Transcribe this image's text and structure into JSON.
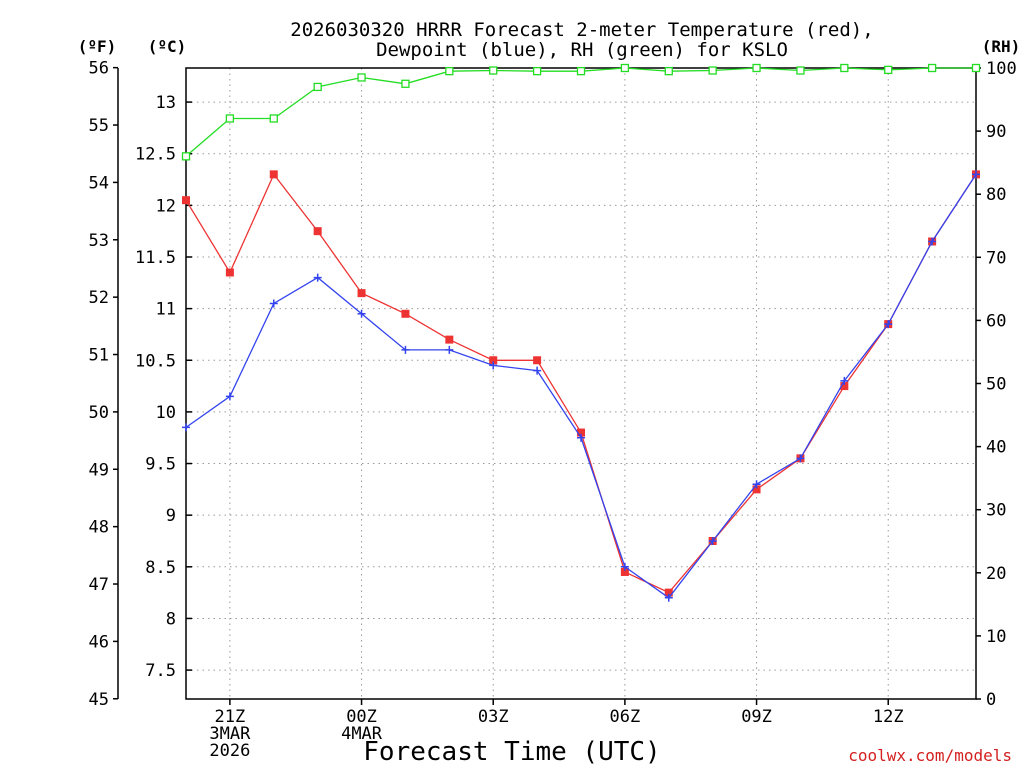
{
  "chart_data": {
    "type": "line",
    "title_line1": "2026030320 HRRR Forecast 2-meter Temperature (red),",
    "title_line2": "Dewpoint (blue), RH (green) for KSLO",
    "xlabel": "Forecast Time (UTC)",
    "credit": "coolwx.com/models",
    "units": {
      "fahrenheit": "(ºF)",
      "celsius": "(ºC)",
      "rh": "(RH)"
    },
    "x_hours": [
      20,
      21,
      22,
      23,
      24,
      25,
      26,
      27,
      28,
      29,
      30,
      31,
      32,
      33,
      34,
      35,
      36,
      37,
      38
    ],
    "x_ticks": [
      {
        "hour": 21,
        "lines": [
          "21Z",
          "3MAR",
          "2026"
        ]
      },
      {
        "hour": 24,
        "lines": [
          "00Z",
          "4MAR"
        ]
      },
      {
        "hour": 27,
        "lines": [
          "03Z"
        ]
      },
      {
        "hour": 30,
        "lines": [
          "06Z"
        ]
      },
      {
        "hour": 33,
        "lines": [
          "09Z"
        ]
      },
      {
        "hour": 36,
        "lines": [
          "12Z"
        ]
      }
    ],
    "xlim": [
      20,
      38
    ],
    "y_celsius_lim": [
      7.22,
      13.33
    ],
    "y_fahrenheit_ticks": [
      "45",
      "46",
      "47",
      "48",
      "49",
      "50",
      "51",
      "52",
      "53",
      "54",
      "55",
      "56"
    ],
    "y_celsius_ticks": [
      "7.5",
      "8",
      "8.5",
      "9",
      "9.5",
      "10",
      "10.5",
      "11",
      "11.5",
      "12",
      "12.5",
      "13"
    ],
    "y_rh_ticks": [
      "0",
      "10",
      "20",
      "30",
      "40",
      "50",
      "60",
      "70",
      "80",
      "90",
      "100"
    ],
    "y_rh_lim": [
      0,
      100
    ],
    "series": [
      {
        "name": "Temperature",
        "color": "#ee3333",
        "marker": "filled-square",
        "axis": "celsius",
        "values": [
          12.05,
          11.35,
          12.3,
          11.75,
          11.15,
          10.95,
          10.7,
          10.5,
          10.5,
          9.8,
          8.45,
          8.25,
          8.75,
          9.25,
          9.55,
          10.25,
          10.85,
          11.65,
          12.3
        ]
      },
      {
        "name": "Dewpoint",
        "color": "#3344ee",
        "marker": "plus",
        "axis": "celsius",
        "values": [
          9.85,
          10.15,
          11.05,
          11.3,
          10.95,
          10.6,
          10.6,
          10.45,
          10.4,
          9.75,
          8.5,
          8.2,
          8.75,
          9.3,
          9.55,
          10.3,
          10.85,
          11.65,
          12.3
        ]
      },
      {
        "name": "RH",
        "color": "#22dd22",
        "marker": "open-square",
        "axis": "rh",
        "values": [
          86,
          92,
          92,
          97,
          98.5,
          97.5,
          99.5,
          99.6,
          99.5,
          99.5,
          100,
          99.5,
          99.6,
          100,
          99.6,
          100,
          99.7,
          100,
          100
        ]
      }
    ]
  }
}
